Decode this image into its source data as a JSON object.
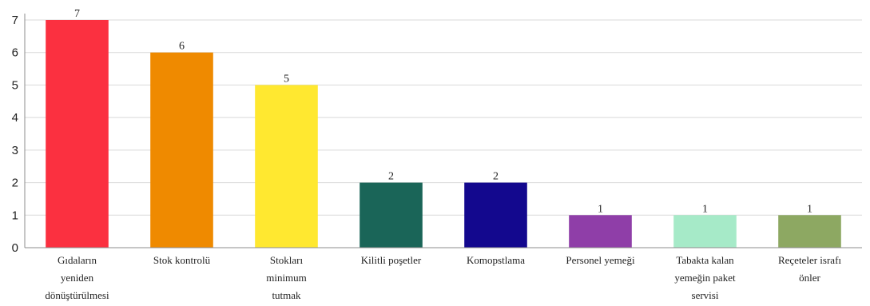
{
  "chart_data": {
    "type": "bar",
    "categories": [
      "Gıdaların yeniden dönüştürülmesi",
      "Stok kontrolü",
      "Stokları minimum tutmak",
      "Kilitli poşetler",
      "Komopstlama",
      "Personel yemeği",
      "Tabakta kalan yemeğin paket servisi",
      "Reçeteler israfı önler"
    ],
    "category_lines": [
      [
        "Gıdaların",
        "yeniden",
        "dönüştürülmesi"
      ],
      [
        "Stok kontrolü"
      ],
      [
        "Stokları",
        "minimum",
        "tutmak"
      ],
      [
        "Kilitli poşetler"
      ],
      [
        "Komopstlama"
      ],
      [
        "Personel yemeği"
      ],
      [
        "Tabakta kalan",
        "yemeğin paket",
        "servisi"
      ],
      [
        "Reçeteler israfı",
        "önler"
      ]
    ],
    "values": [
      7,
      6,
      5,
      2,
      2,
      1,
      1,
      1
    ],
    "colors": [
      "#fb3040",
      "#ef8a00",
      "#ffe830",
      "#1a6558",
      "#13088e",
      "#8f3ea8",
      "#a6eac8",
      "#8da862"
    ],
    "title": "",
    "xlabel": "",
    "ylabel": "",
    "ylim": [
      0,
      7
    ],
    "yticks": [
      "0",
      "1",
      "2",
      "3",
      "4",
      "5",
      "6",
      "7"
    ],
    "grid": true,
    "data_labels": [
      "7",
      "6",
      "5",
      "2",
      "2",
      "1",
      "1",
      "1"
    ]
  }
}
